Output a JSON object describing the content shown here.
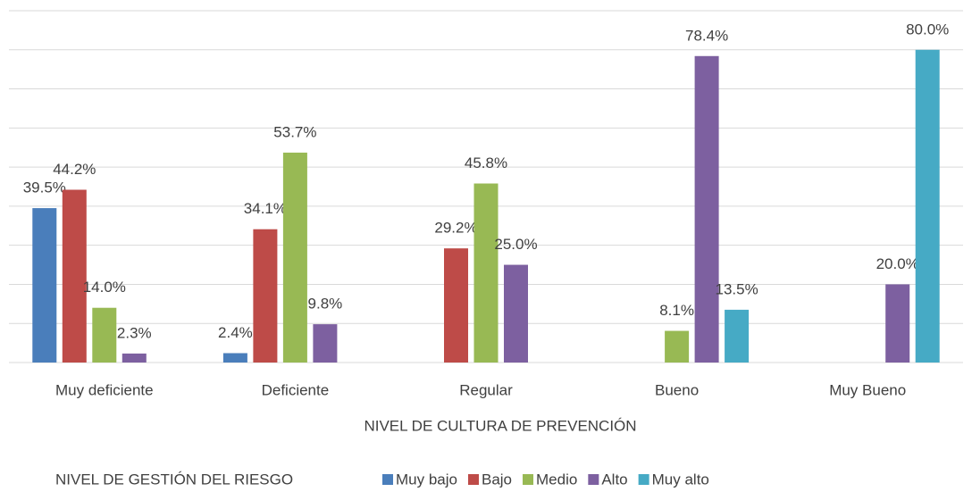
{
  "chart_data": {
    "type": "bar",
    "categories": [
      "Muy deficiente",
      "Deficiente",
      "Regular",
      "Bueno",
      "Muy Bueno"
    ],
    "x_label": "NIVEL DE CULTURA DE PREVENCIÓN",
    "legend_title": "NIVEL DE GESTIÓN DEL RIESGO",
    "series": [
      {
        "name": "Muy bajo",
        "color": "#4a7ebb",
        "values": [
          39.5,
          2.4,
          null,
          null,
          null
        ],
        "value_labels": [
          "39.5%",
          "2.4%",
          null,
          null,
          null
        ]
      },
      {
        "name": "Bajo",
        "color": "#be4b48",
        "values": [
          44.2,
          34.1,
          29.2,
          null,
          null
        ],
        "value_labels": [
          "44.2%",
          "34.1%",
          "29.2%",
          null,
          null
        ]
      },
      {
        "name": "Medio",
        "color": "#98b954",
        "values": [
          14.0,
          53.7,
          45.8,
          8.1,
          null
        ],
        "value_labels": [
          "14.0%",
          "53.7%",
          "45.8%",
          "8.1%",
          null
        ]
      },
      {
        "name": "Alto",
        "color": "#7d60a0",
        "values": [
          2.3,
          9.8,
          25.0,
          78.4,
          20.0
        ],
        "value_labels": [
          "2.3%",
          "9.8%",
          "25.0%",
          "78.4%",
          "20.0%"
        ]
      },
      {
        "name": "Muy alto",
        "color": "#46aac5",
        "values": [
          null,
          null,
          null,
          13.5,
          80.0
        ],
        "value_labels": [
          null,
          null,
          null,
          "13.5%",
          "80.0%"
        ]
      }
    ],
    "ylim": [
      0,
      90
    ],
    "yticks": [
      0,
      10,
      20,
      30,
      40,
      50,
      60,
      70,
      80,
      90
    ],
    "grid": true,
    "legend": "bottom"
  }
}
